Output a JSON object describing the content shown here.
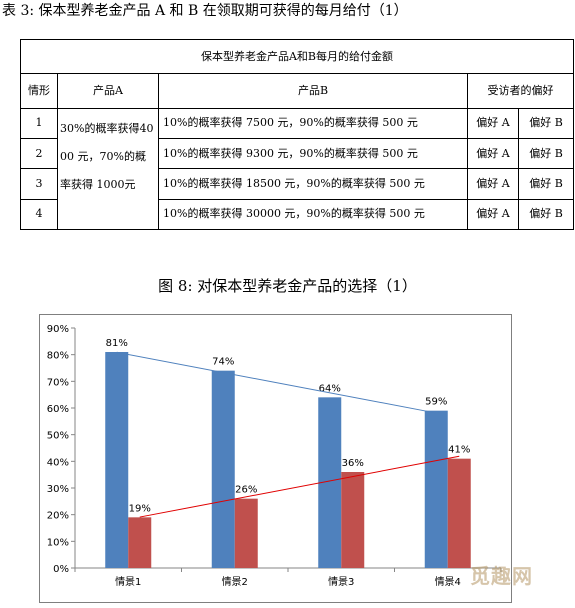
{
  "table_caption": "表 3: 保本型养老金产品 A 和 B 在领取期可获得的每月给付（1）",
  "table": {
    "title": "保本型养老金产品A和B每月的给付金额",
    "headers": {
      "scenario": "情形",
      "product_a": "产品A",
      "product_b": "产品B",
      "preference": "受访者的偏好"
    },
    "product_a_text": "30%的概率获得4000 元，70%的概率获得 1000元",
    "rows": [
      {
        "num": "1",
        "product_b": "10%的概率获得 7500 元，90%的概率获得 500 元",
        "pref_a": "偏好 A",
        "pref_b": "偏好 B"
      },
      {
        "num": "2",
        "product_b": "10%的概率获得 9300 元，90%的概率获得 500 元",
        "pref_a": "偏好 A",
        "pref_b": "偏好 B"
      },
      {
        "num": "3",
        "product_b": "10%的概率获得 18500 元，90%的概率获得 500 元",
        "pref_a": "偏好 A",
        "pref_b": "偏好 B"
      },
      {
        "num": "4",
        "product_b": "10%的概率获得 30000 元，90%的概率获得 500 元",
        "pref_a": "偏好 A",
        "pref_b": "偏好 B"
      }
    ]
  },
  "figure_caption": "图 8: 对保本型养老金产品的选择（1）",
  "watermark": "觅趣网",
  "chart_data": {
    "type": "bar",
    "categories": [
      "情景1",
      "情景2",
      "情景3",
      "情景4"
    ],
    "series": [
      {
        "values": [
          81,
          74,
          64,
          59
        ],
        "labels": [
          "81%",
          "74%",
          "64%",
          "59%"
        ],
        "color": "#4f81bd",
        "trend_color": "#4f81bd"
      },
      {
        "values": [
          19,
          26,
          36,
          41
        ],
        "labels": [
          "19%",
          "26%",
          "36%",
          "41%"
        ],
        "color": "#c0504d",
        "trend_color": "#e00000"
      }
    ],
    "yticks": [
      "0%",
      "10%",
      "20%",
      "30%",
      "40%",
      "50%",
      "60%",
      "70%",
      "80%",
      "90%"
    ],
    "ylim": [
      0,
      90
    ],
    "trendlines": true,
    "grid": false,
    "legend": "none"
  }
}
